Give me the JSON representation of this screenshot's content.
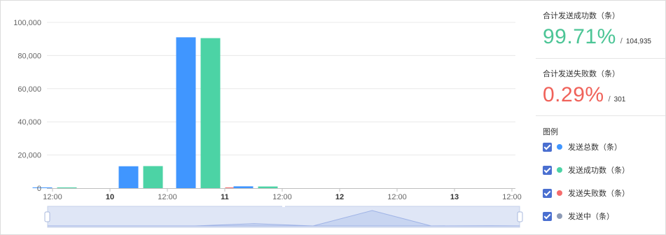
{
  "chart_data": {
    "type": "bar",
    "ylim": [
      0,
      100000
    ],
    "y_ticks": [
      "0",
      "20,000",
      "40,000",
      "60,000",
      "80,000",
      "100,000"
    ],
    "x_ticks": [
      {
        "label": "12:00",
        "bold": false
      },
      {
        "label": "10",
        "bold": true
      },
      {
        "label": "12:00",
        "bold": false
      },
      {
        "label": "11",
        "bold": true
      },
      {
        "label": "12:00",
        "bold": false
      },
      {
        "label": "12",
        "bold": true
      },
      {
        "label": "12:00",
        "bold": false
      },
      {
        "label": "13",
        "bold": true
      },
      {
        "label": "12:00",
        "bold": false
      }
    ],
    "categories": [
      "10日",
      "10日 12:00",
      "11日",
      "11日 12:00",
      "12日",
      "12日 12:00",
      "13日",
      "13日 12:00"
    ],
    "series": [
      {
        "name": "发送总数（条）",
        "color": "#4096ff",
        "values": [
          250,
          0,
          0,
          13200,
          0,
          91000,
          0,
          1100
        ]
      },
      {
        "name": "发送成功数（条）",
        "color": "#4cd3a5",
        "values": [
          300,
          0,
          0,
          13300,
          0,
          90500,
          0,
          1000
        ]
      },
      {
        "name": "发送失败数（条）",
        "color": "#f56c6c",
        "values": [
          0,
          0,
          0,
          0,
          0,
          301,
          0,
          0
        ]
      },
      {
        "name": "发送中（条）",
        "color": "#8d9bb6",
        "values": [
          0,
          0,
          0,
          0,
          0,
          0,
          0,
          0
        ]
      }
    ],
    "grid": true,
    "legend_position": "right",
    "has_zoom_slider": true
  },
  "stats": {
    "success": {
      "title": "合计发送成功数（条）",
      "percent": "99.71%",
      "sep": "/",
      "total": "104,935",
      "color": "#4cc596"
    },
    "failure": {
      "title": "合计发送失败数（条）",
      "percent": "0.29%",
      "sep": "/",
      "total": "301",
      "color": "#f0625a"
    }
  },
  "legend": {
    "title": "图例",
    "items": [
      {
        "label": "发送总数（条）",
        "color": "#4096ff",
        "checked": true
      },
      {
        "label": "发送成功数（条）",
        "color": "#4cd3a5",
        "checked": true
      },
      {
        "label": "发送失败数（条）",
        "color": "#f56c6c",
        "checked": true
      },
      {
        "label": "发送中（条）",
        "color": "#8d9bb6",
        "checked": true
      }
    ]
  }
}
